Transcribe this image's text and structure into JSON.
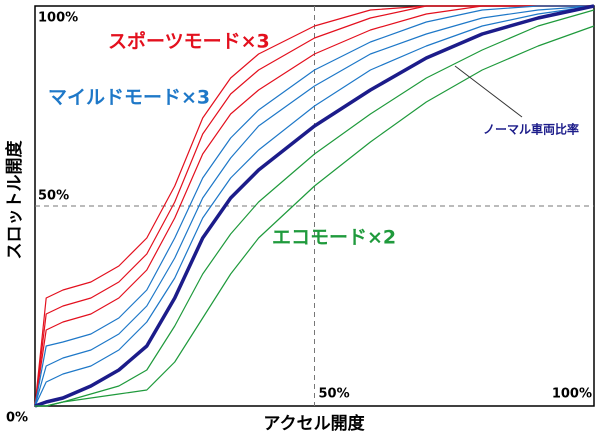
{
  "chart_data": {
    "type": "line",
    "x_label": "アクセル開度",
    "y_label": "スロットル開度",
    "x": [
      0,
      2,
      5,
      10,
      15,
      20,
      25,
      30,
      35,
      40,
      50,
      60,
      70,
      80,
      90,
      100
    ],
    "series": [
      {
        "color": "#e3101e",
        "values": [
          0,
          27,
          29,
          31,
          35,
          42,
          55,
          72,
          82,
          88,
          95,
          99,
          100,
          100,
          100,
          100
        ]
      },
      {
        "color": "#e3101e",
        "values": [
          0,
          23,
          25,
          27,
          31,
          38,
          51,
          68,
          78,
          84,
          92,
          97,
          100,
          100,
          100,
          100
        ]
      },
      {
        "color": "#e3101e",
        "values": [
          0,
          19,
          21,
          23,
          27,
          34,
          47,
          63,
          73,
          79,
          88,
          94,
          98,
          100,
          100,
          100
        ]
      },
      {
        "color": "#1e78c8",
        "values": [
          0,
          15,
          16,
          18,
          22,
          29,
          42,
          57,
          67,
          74,
          84,
          91,
          96,
          99,
          100,
          100
        ]
      },
      {
        "color": "#1e78c8",
        "values": [
          0,
          10,
          12,
          14,
          18,
          25,
          37,
          52,
          62,
          70,
          80,
          88,
          93,
          97,
          99,
          100
        ]
      },
      {
        "color": "#1e78c8",
        "values": [
          0,
          6,
          8,
          10,
          14,
          21,
          32,
          47,
          57,
          64,
          75,
          84,
          90,
          95,
          98,
          100
        ]
      },
      {
        "color": "#1c1c8a",
        "values": [
          0,
          1,
          2,
          5,
          9,
          15,
          27,
          42,
          52,
          59,
          70,
          79,
          87,
          93,
          97,
          100
        ]
      },
      {
        "color": "#1f9a3c",
        "values": [
          0,
          0,
          1,
          3,
          5,
          9,
          20,
          33,
          43,
          51,
          63,
          73,
          82,
          89,
          95,
          99
        ]
      },
      {
        "color": "#1f9a3c",
        "values": [
          0,
          0,
          1,
          2,
          3,
          4,
          11,
          22,
          33,
          42,
          55,
          66,
          76,
          84,
          90,
          95
        ]
      }
    ],
    "annotations": [
      {
        "text": "スポーツモード×3",
        "color": "#e3101e"
      },
      {
        "text": "マイルドモード×3",
        "color": "#1e78c8"
      },
      {
        "text": "エコモード×2",
        "color": "#1f9a3c"
      },
      {
        "text": "ノーマル車両比率",
        "color": "#1c1c8a"
      }
    ],
    "xlim": [
      0,
      100
    ],
    "ylim": [
      0,
      100
    ],
    "xticks": [
      {
        "value": 0,
        "label": "0%"
      },
      {
        "value": 50,
        "label": "50%"
      },
      {
        "value": 100,
        "label": "100%"
      }
    ],
    "yticks": [
      {
        "value": 50,
        "label": "50%"
      },
      {
        "value": 100,
        "label": "100%"
      }
    ],
    "grid": true
  }
}
